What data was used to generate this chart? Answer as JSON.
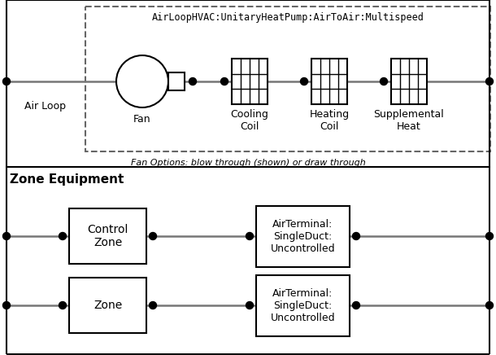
{
  "title": "AirLoopHVAC:UnitaryHeatPump:AirToAir:Multispeed",
  "fan_options_text": "Fan Options: blow through (shown) or draw through",
  "zone_equipment_text": "Zone Equipment",
  "air_loop_text": "Air Loop",
  "fan_text": "Fan",
  "cooling_coil_text": "Cooling\nCoil",
  "heating_coil_text": "Heating\nCoil",
  "supplemental_heat_text": "Supplemental\nHeat",
  "control_zone_text": "Control\nZone",
  "zone_text": "Zone",
  "air_terminal_text": "AirTerminal:\nSingleDuct:\nUncontrolled",
  "bg_color": "#ffffff",
  "line_color": "#777777",
  "dot_color": "#000000",
  "box_line_color": "#000000",
  "dashed_box_color": "#666666",
  "text_color": "#000000",
  "fig_w": 6.1,
  "fig_h": 4.36,
  "dpi": 100
}
